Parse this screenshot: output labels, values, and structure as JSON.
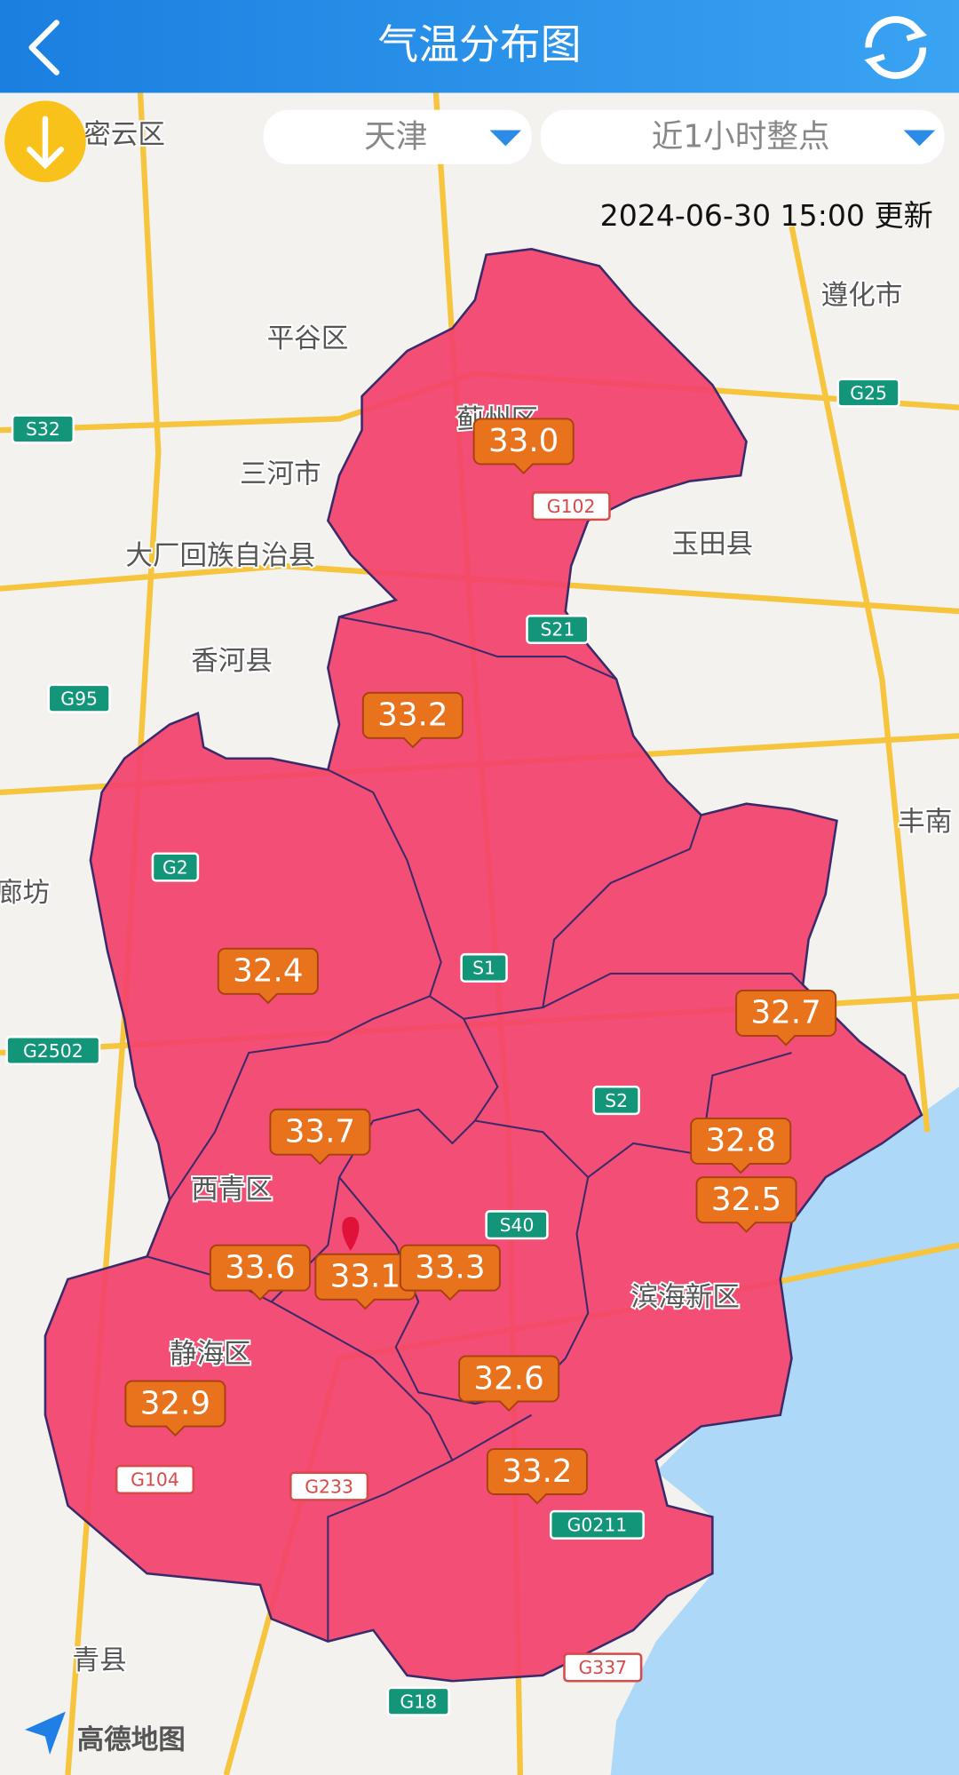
{
  "header": {
    "title": "气温分布图"
  },
  "controls": {
    "region": "天津",
    "period": "近1小时整点"
  },
  "update_time": "2024-06-30 15:00 更新",
  "temperatures": [
    "33.0",
    "33.2",
    "32.4",
    "32.7",
    "33.7",
    "32.8",
    "32.5",
    "33.6",
    "33.1",
    "33.3",
    "32.6",
    "32.9",
    "33.2"
  ],
  "place_labels": [
    "密云区",
    "平谷区",
    "三河市",
    "大厂回族自治县",
    "香河县",
    "遵化市",
    "玉田县",
    "丰南",
    "廊坊",
    "蓟州区",
    "西青区",
    "静海区",
    "滨海新区",
    "青县"
  ],
  "road_labels": [
    "G25",
    "S32",
    "G102",
    "S21",
    "G95",
    "G2",
    "S1",
    "G2502",
    "S2",
    "S40",
    "G104",
    "G233",
    "G0211",
    "G337",
    "G18"
  ],
  "attribution": "高德地图"
}
